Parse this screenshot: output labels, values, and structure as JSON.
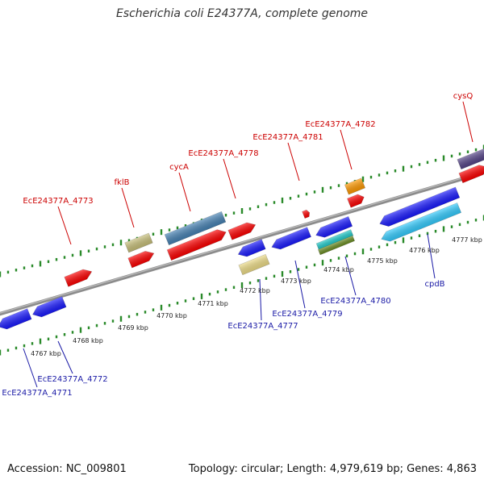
{
  "title": "Escherichia coli E24377A, complete genome",
  "footer": {
    "accession": "Accession: NC_009801",
    "summary": "Topology: circular; Length: 4,979,619 bp; Genes: 4,863"
  },
  "colors": {
    "backbone": "#8c8c8c",
    "tick": "#2a8a2a",
    "forward_label": "#cc0000",
    "reverse_label": "#1a1aa6",
    "ruler_label": "#222222"
  },
  "ruler_labels": [
    "4767 kbp",
    "4768 kbp",
    "4769 kbp",
    "4770 kbp",
    "4771 kbp",
    "4772 kbp",
    "4773 kbp",
    "4774 kbp",
    "4775 kbp",
    "4776 kbp",
    "4777 kbp"
  ],
  "forward_labels": [
    "EcE24377A_4773",
    "fklB",
    "cycA",
    "EcE24377A_4778",
    "EcE24377A_4781",
    "EcE24377A_4782",
    "cysQ"
  ],
  "reverse_labels": [
    "EcE24377A_4771",
    "EcE24377A_4772",
    "EcE24377A_4777",
    "EcE24377A_4779",
    "EcE24377A_4780",
    "cpdB"
  ]
}
